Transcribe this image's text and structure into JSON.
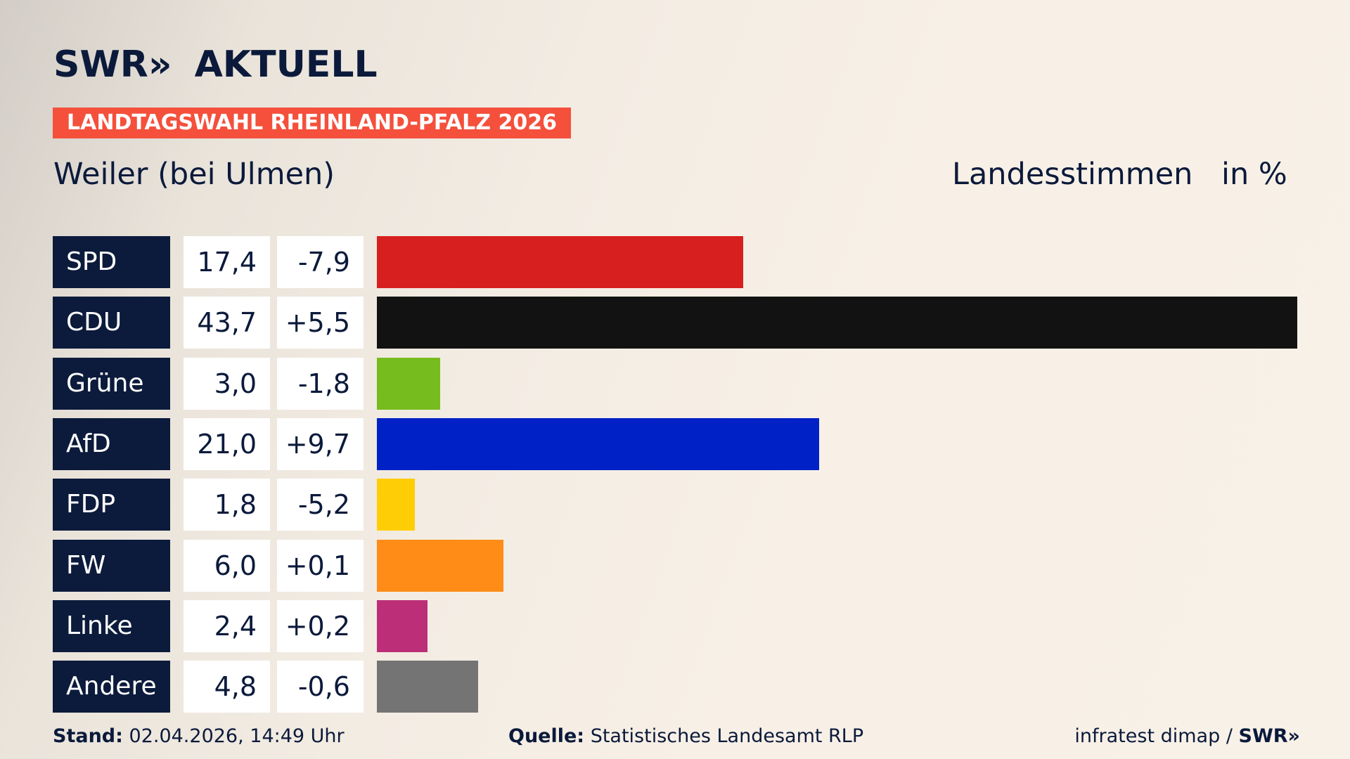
{
  "header": {
    "logo_text": "SWR",
    "logo_chevrons": "»",
    "logo_subtitle": "AKTUELL",
    "banner": "LANDTAGSWAHL RHEINLAND-PFALZ 2026",
    "place": "Weiler (bei Ulmen)",
    "vote_type": "Landesstimmen",
    "unit": "in %"
  },
  "chart_data": {
    "type": "bar",
    "orientation": "horizontal",
    "categories": [
      "SPD",
      "CDU",
      "Grüne",
      "AfD",
      "FDP",
      "FW",
      "Linke",
      "Andere"
    ],
    "series": [
      {
        "values": [
          17.4,
          43.7,
          3.0,
          21.0,
          1.8,
          6.0,
          2.4,
          4.8
        ]
      }
    ],
    "value_labels": [
      "17,4",
      "43,7",
      "3,0",
      "21,0",
      "1,8",
      "6,0",
      "2,4",
      "4,8"
    ],
    "change_labels": [
      "-7,9",
      "+5,5",
      "-1,8",
      "+9,7",
      "-5,2",
      "+0,1",
      "+0,2",
      "-0,6"
    ],
    "colors": [
      "#d81f1f",
      "#121212",
      "#77bc1f",
      "#0021c6",
      "#ffcd05",
      "#ff8c17",
      "#bc2f78",
      "#747474"
    ],
    "xlim": [
      0,
      43.7
    ],
    "grid": false,
    "legend": "none"
  },
  "footer": {
    "stand_label": "Stand:",
    "stand_value": "02.04.2026, 14:49 Uhr",
    "source_label": "Quelle:",
    "source_value": "Statistisches Landesamt RLP",
    "credit": "infratest dimap / ",
    "credit_logo": "SWR",
    "credit_chevrons": "»"
  }
}
